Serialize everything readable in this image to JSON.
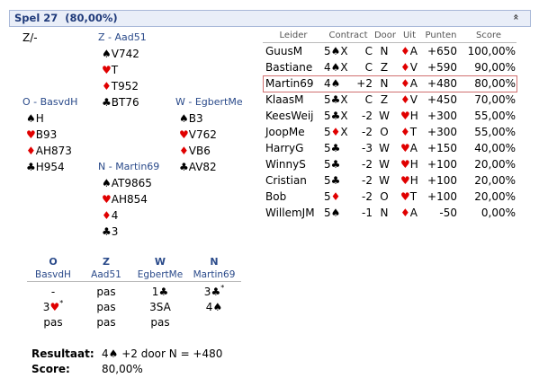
{
  "header": {
    "title": "Spel 27  (80,00%)"
  },
  "deal": {
    "dealer_vuln": "Z/-",
    "hands": [
      {
        "label": "Z - Aad51",
        "cards": [
          "♠V742",
          "♥T",
          "♦T952",
          "♣BT76"
        ]
      },
      {
        "label": "O - BasvdH",
        "cards": [
          "♠H",
          "♥B93",
          "♦AH873",
          "♣H954"
        ]
      },
      {
        "label": "W - EgbertMe",
        "cards": [
          "♠B3",
          "♥V762",
          "♦VB6",
          "♣AV82"
        ]
      },
      {
        "label": "N - Martin69",
        "cards": [
          "♠AT9865",
          "♥AH854",
          "♦4",
          "♣3"
        ]
      }
    ]
  },
  "results": {
    "columns": [
      "Leider",
      "Contract",
      "Door",
      "Uit",
      "Punten",
      "Score"
    ],
    "highlighted": 2,
    "rows": [
      {
        "leider": "GuusM",
        "contract": "5♠X",
        "result": "C",
        "door": "N",
        "lead": "♦A",
        "punten": "+650",
        "score": "100,00%"
      },
      {
        "leider": "Bastiane",
        "contract": "4♠X",
        "result": "C",
        "door": "Z",
        "lead": "♦V",
        "punten": "+590",
        "score": "90,00%"
      },
      {
        "leider": "Martin69",
        "contract": "4♠",
        "result": "+2",
        "door": "N",
        "lead": "♦A",
        "punten": "+480",
        "score": "80,00%"
      },
      {
        "leider": "KlaasM",
        "contract": "5♣X",
        "result": "C",
        "door": "Z",
        "lead": "♦V",
        "punten": "+450",
        "score": "70,00%"
      },
      {
        "leider": "KeesWeij",
        "contract": "5♣X",
        "result": "-2",
        "door": "W",
        "lead": "♥H",
        "punten": "+300",
        "score": "55,00%"
      },
      {
        "leider": "JoopMe",
        "contract": "5♦X",
        "result": "-2",
        "door": "O",
        "lead": "♦T",
        "punten": "+300",
        "score": "55,00%"
      },
      {
        "leider": "HarryG",
        "contract": "5♣",
        "result": "-3",
        "door": "W",
        "lead": "♥A",
        "punten": "+150",
        "score": "40,00%"
      },
      {
        "leider": "WinnyS",
        "contract": "5♣",
        "result": "-2",
        "door": "W",
        "lead": "♥H",
        "punten": "+100",
        "score": "20,00%"
      },
      {
        "leider": "Cristian",
        "contract": "5♣",
        "result": "-2",
        "door": "W",
        "lead": "♥H",
        "punten": "+100",
        "score": "20,00%"
      },
      {
        "leider": "Bob",
        "contract": "5♦",
        "result": "-2",
        "door": "O",
        "lead": "♥T",
        "punten": "+100",
        "score": "20,00%"
      },
      {
        "leider": "WillemJM",
        "contract": "5♠",
        "result": "-1",
        "door": "N",
        "lead": "♦A",
        "punten": "-50",
        "score": "0,00%"
      }
    ]
  },
  "bidding": {
    "seats": [
      {
        "seat": "O",
        "player": "BasvdH"
      },
      {
        "seat": "Z",
        "player": "Aad51"
      },
      {
        "seat": "W",
        "player": "EgbertMe"
      },
      {
        "seat": "N",
        "player": "Martin69"
      }
    ],
    "rounds": [
      [
        "-",
        "pas",
        "1♣",
        "3♣*"
      ],
      [
        "3♥*",
        "pas",
        "3SA",
        "4♠"
      ],
      [
        "pas",
        "pas",
        "pas"
      ]
    ]
  },
  "summary": {
    "result_label": "Resultaat:",
    "result": "4♠ +2 door N = +480",
    "score_label": "Score:",
    "score": "80,00%"
  }
}
